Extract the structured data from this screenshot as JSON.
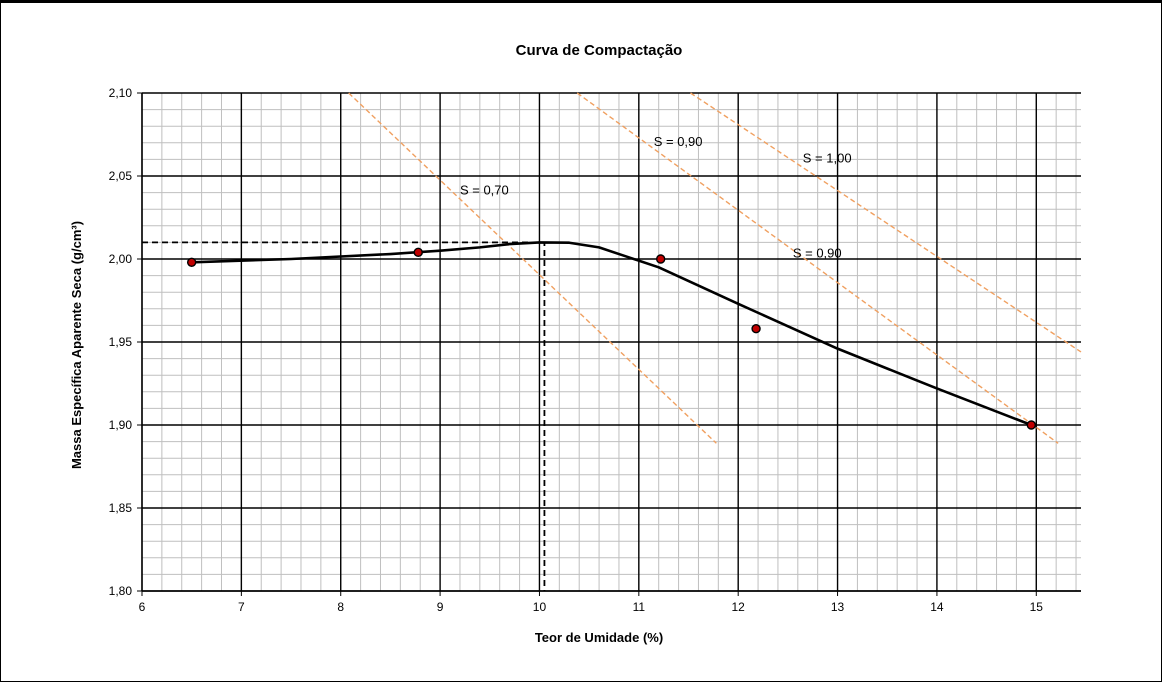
{
  "chart_data": {
    "type": "scatter",
    "title": "Curva de Compactação",
    "xlabel": "Teor de Umidade (%)",
    "ylabel": "Massa Específica Aparente Seca (g/cm³)",
    "xlim": [
      6,
      15.45
    ],
    "ylim": [
      1.8,
      2.1
    ],
    "x_ticks": [
      6,
      7,
      8,
      9,
      10,
      11,
      12,
      13,
      14,
      15
    ],
    "x_tick_labels": [
      "6",
      "7",
      "8",
      "9",
      "10",
      "11",
      "12",
      "13",
      "14",
      "15"
    ],
    "y_ticks": [
      1.8,
      1.85,
      1.9,
      1.95,
      2.0,
      2.05,
      2.1
    ],
    "y_tick_labels": [
      "1,80",
      "1,85",
      "1,90",
      "1,95",
      "2,00",
      "2,05",
      "2,10"
    ],
    "grid": true,
    "grid_minor_x": 0.2,
    "grid_minor_y": 0.01,
    "colors": {
      "curve": "#000000",
      "points_fill": "#c00000",
      "saturation_lines": "#f0a060",
      "major_grid": "#000000",
      "minor_grid": "#bfbfbf"
    },
    "series": [
      {
        "name": "",
        "kind": "points",
        "points": [
          [
            6.5,
            1.998
          ],
          [
            8.78,
            2.004
          ],
          [
            11.22,
            2.0
          ],
          [
            12.18,
            1.958
          ],
          [
            14.95,
            1.9
          ]
        ]
      },
      {
        "name": "",
        "kind": "curve",
        "points": [
          [
            6.5,
            1.998
          ],
          [
            7.5,
            2.0
          ],
          [
            8.5,
            2.003
          ],
          [
            9.0,
            2.005
          ],
          [
            9.4,
            2.007
          ],
          [
            9.7,
            2.009
          ],
          [
            10.0,
            2.01
          ],
          [
            10.3,
            2.0098
          ],
          [
            10.6,
            2.007
          ],
          [
            10.85,
            2.002
          ],
          [
            11.2,
            1.995
          ],
          [
            12.0,
            1.973
          ],
          [
            13.0,
            1.946
          ],
          [
            14.0,
            1.922
          ],
          [
            14.95,
            1.9
          ]
        ]
      },
      {
        "name": "",
        "kind": "reference",
        "points": [
          [
            6.0,
            2.01
          ],
          [
            10.05,
            2.01
          ],
          [
            10.05,
            1.8
          ]
        ]
      }
    ],
    "saturation_lines": [
      {
        "label": "S = 0,70",
        "points": [
          [
            8.08,
            2.1
          ],
          [
            11.78,
            1.889
          ]
        ],
        "label_at": [
          9.2,
          2.039
        ]
      },
      {
        "label": "S = 0,90",
        "points": [
          [
            10.38,
            2.1
          ],
          [
            15.22,
            1.889
          ]
        ],
        "label_at": [
          12.55,
          2.001
        ]
      },
      {
        "label": "S = 0,90",
        "points": [
          [
            10.38,
            2.1
          ],
          [
            15.22,
            1.889
          ]
        ],
        "label_at": [
          11.15,
          2.068
        ]
      },
      {
        "label": "S = 1,00",
        "points": [
          [
            11.52,
            2.1
          ],
          [
            15.45,
            1.944
          ]
        ],
        "label_at": [
          12.65,
          2.058
        ]
      }
    ]
  }
}
